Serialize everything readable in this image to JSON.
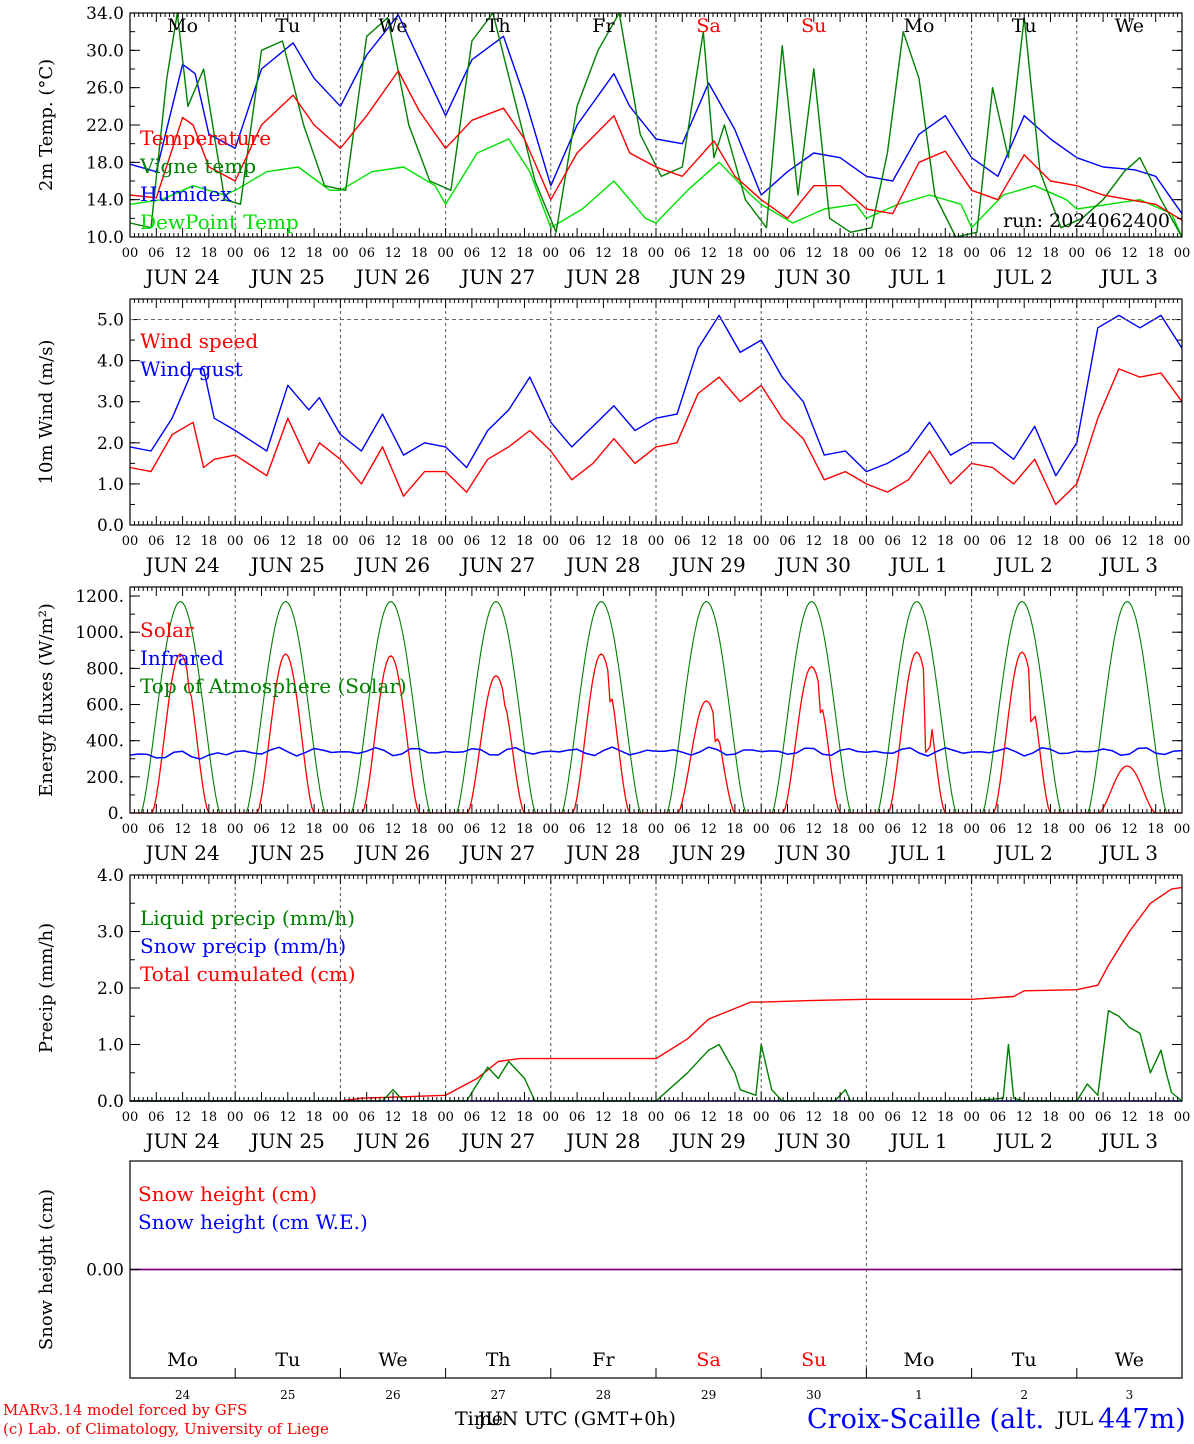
{
  "footer": {
    "credit_line1": "MARv3.14 model forced by GFS",
    "credit_line2": "(c) Lab. of Climatology, University of Liege",
    "xlabel_a": "Time",
    "xlabel_b": "JUN UTC (GMT+0h)",
    "station_a": "Croix-Scaille (alt.",
    "station_b": "447m)",
    "station_overlap": "JUL"
  },
  "colors": {
    "red": "#ff0000",
    "green": "#008000",
    "blue": "#0000ff",
    "lightgreen": "#00e000",
    "purple": "#800080",
    "grid": "#000000"
  },
  "axis": {
    "hour_ticks": [
      "00",
      "06",
      "12",
      "18"
    ],
    "final_tick": "00",
    "date_labels": [
      "JUN 24",
      "JUN 25",
      "JUN 26",
      "JUN 27",
      "JUN 28",
      "JUN 29",
      "JUN 30",
      "JUL  1",
      "JUL  2",
      "JUL  3"
    ],
    "weekdays": [
      "Mo",
      "Tu",
      "We",
      "Th",
      "Fr",
      "Sa",
      "Su",
      "Mo",
      "Tu",
      "We"
    ],
    "weekend_indices": [
      5,
      6
    ],
    "day_numbers": [
      "24",
      "25",
      "26",
      "27",
      "28",
      "29",
      "30",
      "1",
      "2",
      "3"
    ]
  },
  "chart_data": [
    {
      "id": "temperature",
      "type": "line",
      "ylabel": "2m Temp. (°C)",
      "ylim": [
        10,
        34
      ],
      "yticks": [
        "10.0",
        "14.0",
        "18.0",
        "22.0",
        "26.0",
        "30.0",
        "34.0"
      ],
      "ytick_values": [
        10,
        14,
        18,
        22,
        26,
        30,
        34
      ],
      "run_label": "run: 2024062400",
      "x_days": [
        0,
        10
      ],
      "series": [
        {
          "name": "Temperature",
          "color": "#ff0000",
          "x": [
            0,
            0.25,
            0.5,
            0.6,
            0.75,
            1,
            1.25,
            1.55,
            1.75,
            2,
            2.25,
            2.55,
            2.75,
            3,
            3.25,
            3.55,
            3.75,
            4,
            4.25,
            4.6,
            4.75,
            5,
            5.25,
            5.55,
            5.75,
            6,
            6.25,
            6.5,
            6.75,
            7,
            7.25,
            7.5,
            7.75,
            8,
            8.25,
            8.5,
            8.75,
            9,
            9.25,
            9.5,
            9.75,
            10
          ],
          "values": [
            14.5,
            14.2,
            22.8,
            22.0,
            17.5,
            16.0,
            22.0,
            25.2,
            22.0,
            19.5,
            23.0,
            27.8,
            23.5,
            19.5,
            22.5,
            23.8,
            20.5,
            14.0,
            19.0,
            23.0,
            19.0,
            17.5,
            16.5,
            20.3,
            16.5,
            14.0,
            12.0,
            15.5,
            15.5,
            13.0,
            12.5,
            18.0,
            19.2,
            15.0,
            14.0,
            18.8,
            16.0,
            15.5,
            14.5,
            14.0,
            13.5,
            11.8
          ]
        },
        {
          "name": "Vigne temp",
          "color": "#008000",
          "x": [
            0,
            0.2,
            0.35,
            0.45,
            0.55,
            0.7,
            0.9,
            1.05,
            1.25,
            1.45,
            1.65,
            1.85,
            2.05,
            2.25,
            2.45,
            2.65,
            2.85,
            3.05,
            3.25,
            3.45,
            3.65,
            3.85,
            4.05,
            4.25,
            4.45,
            4.65,
            4.85,
            5.05,
            5.25,
            5.45,
            5.55,
            5.65,
            5.85,
            6.05,
            6.2,
            6.35,
            6.5,
            6.65,
            6.85,
            7.05,
            7.2,
            7.35,
            7.5,
            7.65,
            7.85,
            8.05,
            8.2,
            8.35,
            8.5,
            8.65,
            8.85,
            9.05,
            9.25,
            9.45,
            9.6,
            9.8,
            10
          ],
          "values": [
            11.5,
            11.0,
            27.0,
            34.0,
            24.0,
            28.0,
            14.0,
            13.5,
            30.0,
            31.0,
            22.0,
            15.5,
            15.0,
            31.5,
            33.5,
            22.0,
            16.0,
            15.0,
            31.0,
            34.0,
            25.0,
            16.0,
            10.5,
            24.0,
            30.0,
            34.0,
            21.0,
            16.5,
            17.5,
            32.0,
            18.5,
            22.0,
            14.0,
            11.0,
            30.5,
            14.5,
            28.0,
            12.0,
            10.5,
            11.0,
            19.0,
            32.0,
            27.0,
            14.5,
            10.0,
            10.5,
            26.0,
            18.5,
            33.5,
            17.0,
            11.0,
            12.0,
            14.0,
            17.0,
            18.5,
            14.0,
            10.0
          ]
        },
        {
          "name": "Humidex",
          "color": "#0000ff",
          "x": [
            0,
            0.25,
            0.5,
            0.62,
            0.75,
            1,
            1.25,
            1.55,
            1.75,
            2,
            2.25,
            2.55,
            2.75,
            3,
            3.25,
            3.55,
            3.75,
            4,
            4.25,
            4.6,
            4.75,
            5,
            5.25,
            5.5,
            5.75,
            6,
            6.25,
            6.5,
            6.75,
            7,
            7.25,
            7.5,
            7.75,
            8,
            8.25,
            8.5,
            8.75,
            9,
            9.25,
            9.55,
            9.75,
            10
          ],
          "values": [
            17.8,
            17.0,
            28.5,
            27.5,
            21.0,
            19.5,
            28.0,
            30.8,
            27.0,
            24.0,
            29.5,
            33.8,
            29.0,
            23.0,
            29.0,
            31.5,
            25.0,
            15.5,
            22.0,
            27.5,
            24.0,
            20.5,
            20.0,
            26.5,
            21.5,
            14.5,
            17.0,
            19.0,
            18.5,
            16.5,
            16.0,
            21.0,
            23.0,
            18.5,
            16.5,
            23.0,
            20.5,
            18.5,
            17.5,
            17.2,
            16.5,
            12.5
          ]
        },
        {
          "name": "DewPoint Temp",
          "color": "#00e000",
          "x": [
            0,
            0.3,
            0.6,
            0.9,
            1,
            1.3,
            1.6,
            1.9,
            2.0,
            2.3,
            2.6,
            2.9,
            3.0,
            3.3,
            3.6,
            3.8,
            4.0,
            4.3,
            4.6,
            4.9,
            5.0,
            5.3,
            5.6,
            5.9,
            6.0,
            6.3,
            6.6,
            6.9,
            7.0,
            7.3,
            7.6,
            7.9,
            8.0,
            8.3,
            8.6,
            8.9,
            9.0,
            9.3,
            9.6,
            9.9,
            10
          ],
          "values": [
            13.5,
            14.0,
            15.5,
            14.5,
            15.0,
            17.0,
            17.5,
            15.0,
            15.0,
            17.0,
            17.5,
            15.5,
            13.5,
            19.0,
            20.5,
            17.0,
            11.0,
            13.0,
            16.0,
            12.0,
            11.5,
            15.0,
            18.0,
            14.5,
            13.5,
            11.5,
            13.0,
            13.5,
            12.0,
            13.5,
            14.5,
            13.5,
            11.0,
            14.5,
            15.5,
            14.0,
            13.0,
            13.5,
            14.0,
            12.5,
            10.0
          ]
        }
      ]
    },
    {
      "id": "wind",
      "type": "line",
      "ylabel": "10m Wind (m/s)",
      "ylim": [
        0,
        5.5
      ],
      "yticks": [
        "0.0",
        "1.0",
        "2.0",
        "3.0",
        "4.0",
        "5.0"
      ],
      "ytick_values": [
        0,
        1,
        2,
        3,
        4,
        5
      ],
      "dashed_reference": 5,
      "x_days": [
        0,
        10
      ],
      "series": [
        {
          "name": "Wind speed",
          "color": "#ff0000",
          "x": [
            0,
            0.2,
            0.4,
            0.6,
            0.7,
            0.8,
            1.0,
            1.3,
            1.5,
            1.7,
            1.8,
            2.0,
            2.2,
            2.4,
            2.6,
            2.8,
            3.0,
            3.2,
            3.4,
            3.6,
            3.8,
            4.0,
            4.2,
            4.4,
            4.6,
            4.8,
            5.0,
            5.2,
            5.4,
            5.6,
            5.8,
            6.0,
            6.2,
            6.4,
            6.6,
            6.8,
            7.0,
            7.2,
            7.4,
            7.6,
            7.8,
            8.0,
            8.2,
            8.4,
            8.6,
            8.8,
            9.0,
            9.2,
            9.4,
            9.6,
            9.8,
            10.0
          ],
          "values": [
            1.4,
            1.3,
            2.2,
            2.5,
            1.4,
            1.6,
            1.7,
            1.2,
            2.6,
            1.5,
            2.0,
            1.6,
            1.0,
            1.9,
            0.7,
            1.3,
            1.3,
            0.8,
            1.6,
            1.9,
            2.3,
            1.8,
            1.1,
            1.5,
            2.1,
            1.5,
            1.9,
            2.0,
            3.2,
            3.6,
            3.0,
            3.4,
            2.6,
            2.1,
            1.1,
            1.3,
            1.0,
            0.8,
            1.1,
            1.8,
            1.0,
            1.5,
            1.4,
            1.0,
            1.6,
            0.5,
            1.0,
            2.6,
            3.8,
            3.6,
            3.7,
            3.0
          ]
        },
        {
          "name": "Wind gust",
          "color": "#0000ff",
          "x": [
            0,
            0.2,
            0.4,
            0.6,
            0.7,
            0.8,
            1.0,
            1.3,
            1.5,
            1.7,
            1.8,
            2.0,
            2.2,
            2.4,
            2.6,
            2.8,
            3.0,
            3.2,
            3.4,
            3.6,
            3.8,
            4.0,
            4.2,
            4.4,
            4.6,
            4.8,
            5.0,
            5.2,
            5.4,
            5.6,
            5.8,
            6.0,
            6.2,
            6.4,
            6.6,
            6.8,
            7.0,
            7.2,
            7.4,
            7.6,
            7.8,
            8.0,
            8.2,
            8.4,
            8.6,
            8.8,
            9.0,
            9.2,
            9.4,
            9.6,
            9.8,
            10.0
          ],
          "values": [
            1.9,
            1.8,
            2.6,
            3.8,
            3.8,
            2.6,
            2.3,
            1.8,
            3.4,
            2.8,
            3.1,
            2.2,
            1.8,
            2.7,
            1.7,
            2.0,
            1.9,
            1.4,
            2.3,
            2.8,
            3.6,
            2.5,
            1.9,
            2.4,
            2.9,
            2.3,
            2.6,
            2.7,
            4.3,
            5.1,
            4.2,
            4.5,
            3.6,
            3.0,
            1.7,
            1.8,
            1.3,
            1.5,
            1.8,
            2.5,
            1.7,
            2.0,
            2.0,
            1.6,
            2.4,
            1.2,
            2.0,
            4.8,
            5.1,
            4.8,
            5.1,
            4.3
          ]
        }
      ]
    },
    {
      "id": "energy",
      "type": "line",
      "ylabel": "Energy fluxes (W/m²)",
      "ylim": [
        0,
        1250
      ],
      "yticks": [
        "0.",
        "200.",
        "400.",
        "600.",
        "800.",
        "1000.",
        "1200."
      ],
      "ytick_values": [
        0,
        200,
        400,
        600,
        800,
        1000,
        1200
      ],
      "x_days": [
        0,
        10
      ],
      "solar_daily_peaks": [
        880,
        880,
        870,
        760,
        880,
        620,
        810,
        890,
        890,
        260
      ],
      "solar_secondary_peaks": [
        660,
        720,
        770,
        580,
        600,
        380,
        540,
        320,
        490,
        210
      ],
      "toa_daily_peak": 1170,
      "infrared_mean": 340,
      "series": [
        {
          "name": "Solar",
          "color": "#ff0000"
        },
        {
          "name": "Infrared",
          "color": "#0000ff"
        },
        {
          "name": "Top of Atmosphere (Solar)",
          "color": "#008000"
        }
      ]
    },
    {
      "id": "precip",
      "type": "line",
      "ylabel": "Precip (mm/h)",
      "ylim": [
        0,
        4
      ],
      "yticks": [
        "0.0",
        "1.0",
        "2.0",
        "3.0",
        "4.0"
      ],
      "ytick_values": [
        0,
        1,
        2,
        3,
        4
      ],
      "x_days": [
        0,
        10
      ],
      "series": [
        {
          "name": "Liquid precip (mm/h)",
          "color": "#008000",
          "x": [
            0,
            1.9,
            2.0,
            2.4,
            2.5,
            2.6,
            2.9,
            3.0,
            3.2,
            3.4,
            3.5,
            3.6,
            3.75,
            3.85,
            4.0,
            5.0,
            5.3,
            5.5,
            5.6,
            5.75,
            5.8,
            5.95,
            6.0,
            6.1,
            6.2,
            6.7,
            6.8,
            6.85,
            7.0,
            8.0,
            8.3,
            8.35,
            8.4,
            8.5,
            8.7,
            9.0,
            9.1,
            9.2,
            9.3,
            9.4,
            9.5,
            9.6,
            9.7,
            9.8,
            9.85,
            9.9,
            10.0
          ],
          "values": [
            0,
            0,
            0,
            0,
            0.2,
            0,
            0,
            0,
            0,
            0.6,
            0.4,
            0.7,
            0.4,
            0,
            0,
            0,
            0.5,
            0.9,
            1.0,
            0.5,
            0.2,
            0.1,
            1.0,
            0.2,
            0,
            0,
            0.2,
            0,
            0,
            0,
            0.05,
            1.0,
            0.05,
            0,
            0,
            0,
            0.3,
            0.1,
            1.6,
            1.5,
            1.3,
            1.2,
            0.5,
            0.9,
            0.5,
            0.15,
            0
          ]
        },
        {
          "name": "Snow precip (mm/h)",
          "color": "#0000ff",
          "x": [
            0,
            10
          ],
          "values": [
            0,
            0
          ]
        },
        {
          "name": "Total cumulated (cm)",
          "color": "#ff0000",
          "x": [
            0,
            2.0,
            2.2,
            3.0,
            3.3,
            3.5,
            3.7,
            4.0,
            5.0,
            5.3,
            5.5,
            5.7,
            5.9,
            6.0,
            6.5,
            7.0,
            7.5,
            8.0,
            8.4,
            8.5,
            9.0,
            9.2,
            9.3,
            9.5,
            9.7,
            9.9,
            10.0
          ],
          "values": [
            0,
            0,
            0.05,
            0.1,
            0.4,
            0.7,
            0.75,
            0.75,
            0.75,
            1.1,
            1.45,
            1.6,
            1.75,
            1.75,
            1.78,
            1.8,
            1.8,
            1.8,
            1.85,
            1.95,
            1.97,
            2.05,
            2.4,
            3.0,
            3.5,
            3.75,
            3.78
          ]
        }
      ]
    },
    {
      "id": "snow",
      "type": "line",
      "ylabel": "Snow height (cm)",
      "ylim": [
        -1,
        1
      ],
      "yticks": [
        "0.00"
      ],
      "ytick_values": [
        0
      ],
      "x_days": [
        0,
        10
      ],
      "series": [
        {
          "name": "Snow height (cm)",
          "color": "#ff0000",
          "x": [
            0,
            10
          ],
          "values": [
            0,
            0
          ]
        },
        {
          "name": "Snow height (cm W.E.)",
          "color": "#0000ff",
          "x": [
            0,
            10
          ],
          "values": [
            0,
            0
          ]
        }
      ]
    }
  ]
}
